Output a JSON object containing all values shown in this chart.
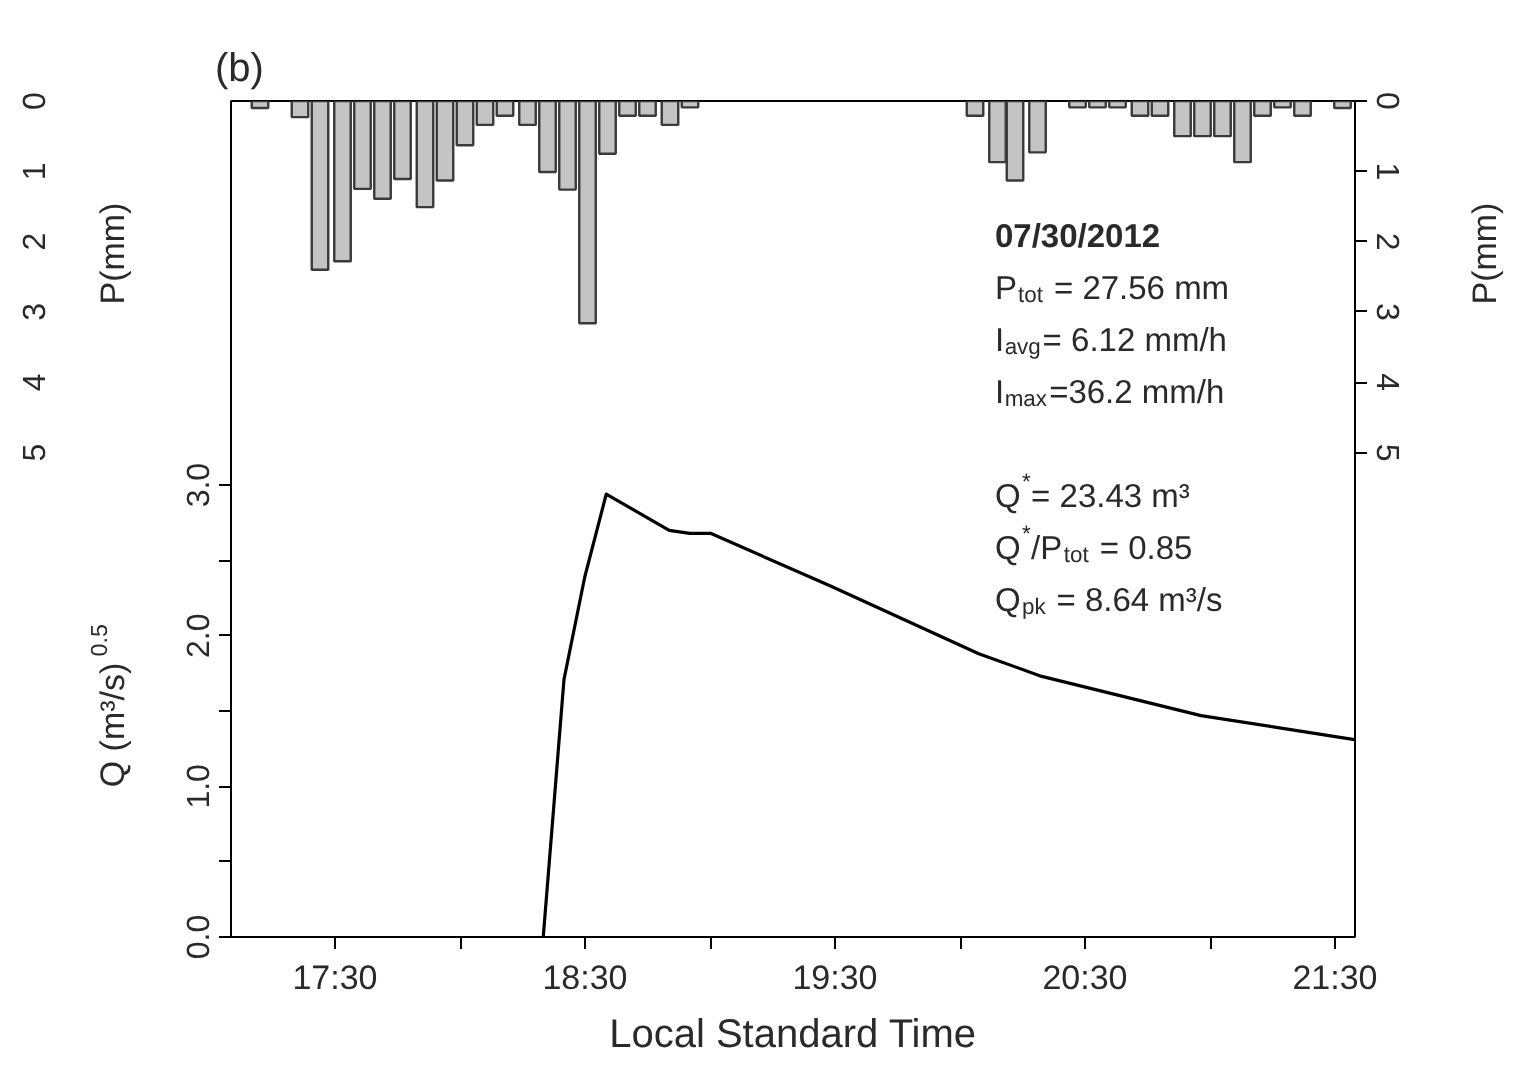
{
  "chart_data": {
    "type": "line",
    "title": "(b)",
    "xlabel": "Local Standard Time",
    "ylabel": "Q (m³/s)$^{0.5}$",
    "y2label": "P(mm)",
    "y3label": "P(mm)",
    "xlim": [
      17.084,
      21.58
    ],
    "xticks": [
      {
        "value": 17.5,
        "label": "17:30"
      },
      {
        "value": 18,
        "label": null
      },
      {
        "value": 18.5,
        "label": "18:30"
      },
      {
        "value": 19,
        "label": null
      },
      {
        "value": 19.5,
        "label": "19:30"
      },
      {
        "value": 20,
        "label": null
      },
      {
        "value": 20.5,
        "label": "20:30"
      },
      {
        "value": 21,
        "label": null
      },
      {
        "value": 21.5,
        "label": "21:30"
      }
    ],
    "ylim": [
      0,
      5.55
    ],
    "yticks": [
      {
        "value": 0,
        "label": "0.0"
      },
      {
        "value": 0.5,
        "label": null
      },
      {
        "value": 1,
        "label": "1.0"
      },
      {
        "value": 1.5,
        "label": null
      },
      {
        "value": 2,
        "label": "2.0"
      },
      {
        "value": 2.5,
        "label": null
      },
      {
        "value": 3,
        "label": "3.0"
      }
    ],
    "y2lim": [
      11.89,
      0
    ],
    "y2ticks": [
      0,
      1,
      2,
      3,
      4,
      5
    ],
    "y3lim": [
      11.89,
      0
    ],
    "y3ticks": [
      0,
      1,
      2,
      3,
      4,
      5
    ],
    "series": [
      {
        "type": "bar",
        "axis": "y2",
        "color": "#c4c4c4",
        "x": [
          17.2,
          17.36,
          17.44,
          17.53,
          17.61,
          17.69,
          17.77,
          17.86,
          17.94,
          18.02,
          18.1,
          18.18,
          18.27,
          18.35,
          18.43,
          18.51,
          18.59,
          18.67,
          18.75,
          18.84,
          18.92,
          20.06,
          20.15,
          20.22,
          20.31,
          20.47,
          20.55,
          20.63,
          20.72,
          20.8,
          20.89,
          20.97,
          21.05,
          21.13,
          21.21,
          21.29,
          21.37,
          21.53
        ],
        "values": [
          0.1,
          0.23,
          2.4,
          2.28,
          1.25,
          1.39,
          1.11,
          1.51,
          1.13,
          0.63,
          0.34,
          0.21,
          0.34,
          1.01,
          1.26,
          3.16,
          0.75,
          0.21,
          0.21,
          0.34,
          0.09,
          0.21,
          0.87,
          1.13,
          0.73,
          0.09,
          0.09,
          0.09,
          0.21,
          0.21,
          0.5,
          0.5,
          0.5,
          0.87,
          0.21,
          0.09,
          0.21,
          0.1
        ]
      },
      {
        "color": "#000000",
        "x": [
          18.333,
          18.416,
          18.499,
          18.585,
          18.837,
          18.919,
          19.002,
          19.482,
          20.075,
          20.327,
          20.964,
          21.348,
          21.578
        ],
        "values": [
          0,
          1.71,
          2.39,
          2.94,
          2.7,
          2.68,
          2.68,
          2.33,
          1.88,
          1.73,
          1.47,
          1.37,
          1.31
        ]
      }
    ],
    "annotations": [
      "07/30/2012",
      "P$_{tot}$ = 27.56 mm",
      "I$_{avg}$= 6.12 mm/h",
      "I$_{max}$=36.2 mm/h",
      "Q$^{*}$= 23.43 m³",
      "Q$^{*}$/P$_{tot}$ = 0.85",
      "Q$_{pk}$ = 8.64 m³/s"
    ]
  }
}
